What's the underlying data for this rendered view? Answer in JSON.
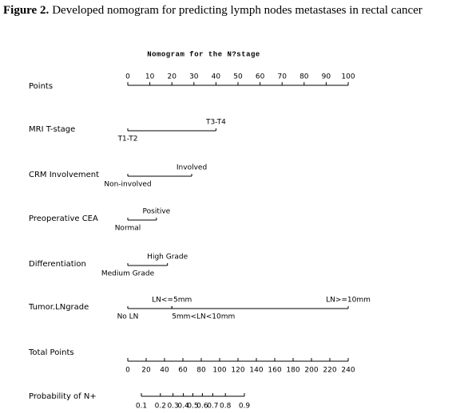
{
  "caption": {
    "label": "Figure 2.",
    "text": "Developed nomogram for predicting lymph nodes metastases in rectal cancer"
  },
  "chart_data": {
    "type": "nomogram",
    "title": "Nomogram for the N?stage",
    "points": {
      "label": "Points",
      "xlim": [
        0,
        100
      ],
      "xticks": [
        0,
        10,
        20,
        30,
        40,
        50,
        60,
        70,
        80,
        90,
        100
      ]
    },
    "variables": [
      {
        "label": "MRI T-stage",
        "levels": [
          {
            "name": "T1-T2",
            "points": 0
          },
          {
            "name": "T3-T4",
            "points": 40
          }
        ]
      },
      {
        "label": "CRM Involvement",
        "levels": [
          {
            "name": "Non-involved",
            "points": 0
          },
          {
            "name": "Involved",
            "points": 29
          }
        ]
      },
      {
        "label": "Preoperative CEA",
        "levels": [
          {
            "name": "Normal",
            "points": 0
          },
          {
            "name": "Positive",
            "points": 13
          }
        ]
      },
      {
        "label": "Differentiation",
        "levels": [
          {
            "name": "Medium Grade",
            "points": 0
          },
          {
            "name": "High Grade",
            "points": 18
          }
        ]
      },
      {
        "label": "Tumor.LNgrade",
        "levels": [
          {
            "name": "No LN",
            "points": 0
          },
          {
            "name": "LN<=5mm",
            "points": 20
          },
          {
            "name": "5mm<LN<10mm",
            "points": 20
          },
          {
            "name": "LN>=10mm",
            "points": 100
          }
        ]
      }
    ],
    "total_points": {
      "label": "Total Points",
      "xlim": [
        0,
        240
      ],
      "xticks": [
        0,
        20,
        40,
        60,
        80,
        100,
        120,
        140,
        160,
        180,
        200,
        220,
        240
      ]
    },
    "probability": {
      "label": "Probability of N+",
      "scale": "logit",
      "xlim": [
        0.1,
        0.9
      ],
      "xticks": [
        0.1,
        0.2,
        0.3,
        0.4,
        0.5,
        0.6,
        0.7,
        0.8,
        0.9
      ]
    }
  }
}
